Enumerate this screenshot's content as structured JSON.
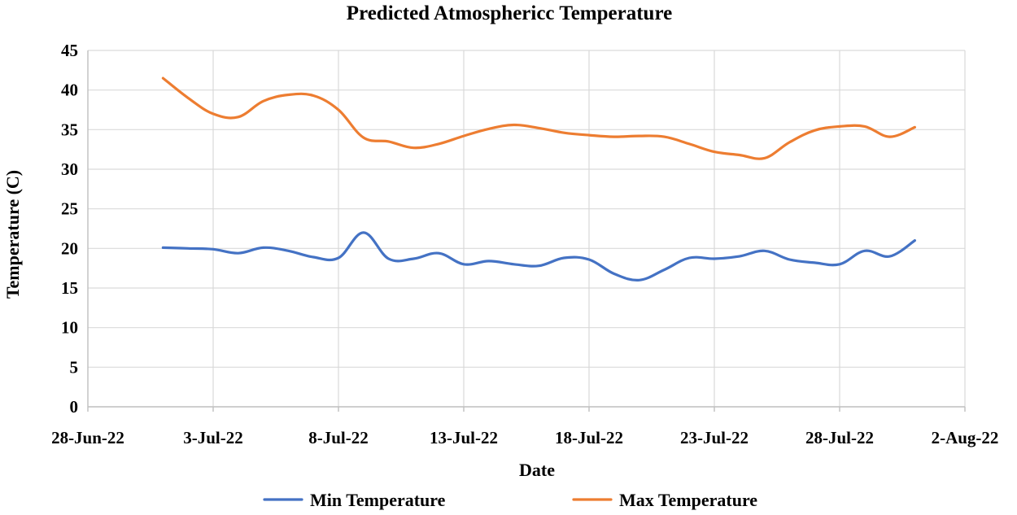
{
  "chart_data": {
    "type": "line",
    "title": "Predicted Atmosphericc Temperature",
    "xlabel": "Date",
    "ylabel": "Temperature (C)",
    "ylim": [
      0,
      45
    ],
    "yticks": [
      0,
      5,
      10,
      15,
      20,
      25,
      30,
      35,
      40,
      45
    ],
    "xlim": [
      0,
      35
    ],
    "xticks": [
      {
        "label": "28-Jun-22",
        "day": 0
      },
      {
        "label": "3-Jul-22",
        "day": 5
      },
      {
        "label": "8-Jul-22",
        "day": 10
      },
      {
        "label": "13-Jul-22",
        "day": 15
      },
      {
        "label": "18-Jul-22",
        "day": 20
      },
      {
        "label": "23-Jul-22",
        "day": 25
      },
      {
        "label": "28-Jul-22",
        "day": 30
      },
      {
        "label": "2-Aug-22",
        "day": 35
      }
    ],
    "grid": true,
    "legend_position": "bottom",
    "series": [
      {
        "name": "Min Temperature",
        "color": "#4472c4",
        "points": [
          [
            3,
            20.1
          ],
          [
            4,
            20.0
          ],
          [
            5,
            19.9
          ],
          [
            6,
            19.4
          ],
          [
            7,
            20.1
          ],
          [
            8,
            19.7
          ],
          [
            9,
            18.9
          ],
          [
            10,
            18.8
          ],
          [
            11,
            22.0
          ],
          [
            12,
            18.7
          ],
          [
            13,
            18.7
          ],
          [
            14,
            19.4
          ],
          [
            15,
            18.0
          ],
          [
            16,
            18.4
          ],
          [
            17,
            18.0
          ],
          [
            18,
            17.8
          ],
          [
            19,
            18.8
          ],
          [
            20,
            18.6
          ],
          [
            21,
            16.8
          ],
          [
            22,
            16.0
          ],
          [
            23,
            17.3
          ],
          [
            24,
            18.8
          ],
          [
            25,
            18.7
          ],
          [
            26,
            19.0
          ],
          [
            27,
            19.7
          ],
          [
            28,
            18.6
          ],
          [
            29,
            18.2
          ],
          [
            30,
            18.0
          ],
          [
            31,
            19.7
          ],
          [
            32,
            19.0
          ],
          [
            33,
            21.0
          ]
        ]
      },
      {
        "name": "Max Temperature",
        "color": "#ed7d31",
        "points": [
          [
            3,
            41.5
          ],
          [
            4,
            39.0
          ],
          [
            5,
            37.0
          ],
          [
            6,
            36.6
          ],
          [
            7,
            38.6
          ],
          [
            8,
            39.4
          ],
          [
            9,
            39.3
          ],
          [
            10,
            37.5
          ],
          [
            11,
            34.0
          ],
          [
            12,
            33.5
          ],
          [
            13,
            32.7
          ],
          [
            14,
            33.2
          ],
          [
            15,
            34.2
          ],
          [
            16,
            35.1
          ],
          [
            17,
            35.6
          ],
          [
            18,
            35.2
          ],
          [
            19,
            34.6
          ],
          [
            20,
            34.3
          ],
          [
            21,
            34.1
          ],
          [
            22,
            34.2
          ],
          [
            23,
            34.1
          ],
          [
            24,
            33.2
          ],
          [
            25,
            32.2
          ],
          [
            26,
            31.8
          ],
          [
            27,
            31.4
          ],
          [
            28,
            33.4
          ],
          [
            29,
            34.9
          ],
          [
            30,
            35.4
          ],
          [
            31,
            35.4
          ],
          [
            32,
            34.1
          ],
          [
            33,
            35.3
          ]
        ]
      }
    ]
  }
}
